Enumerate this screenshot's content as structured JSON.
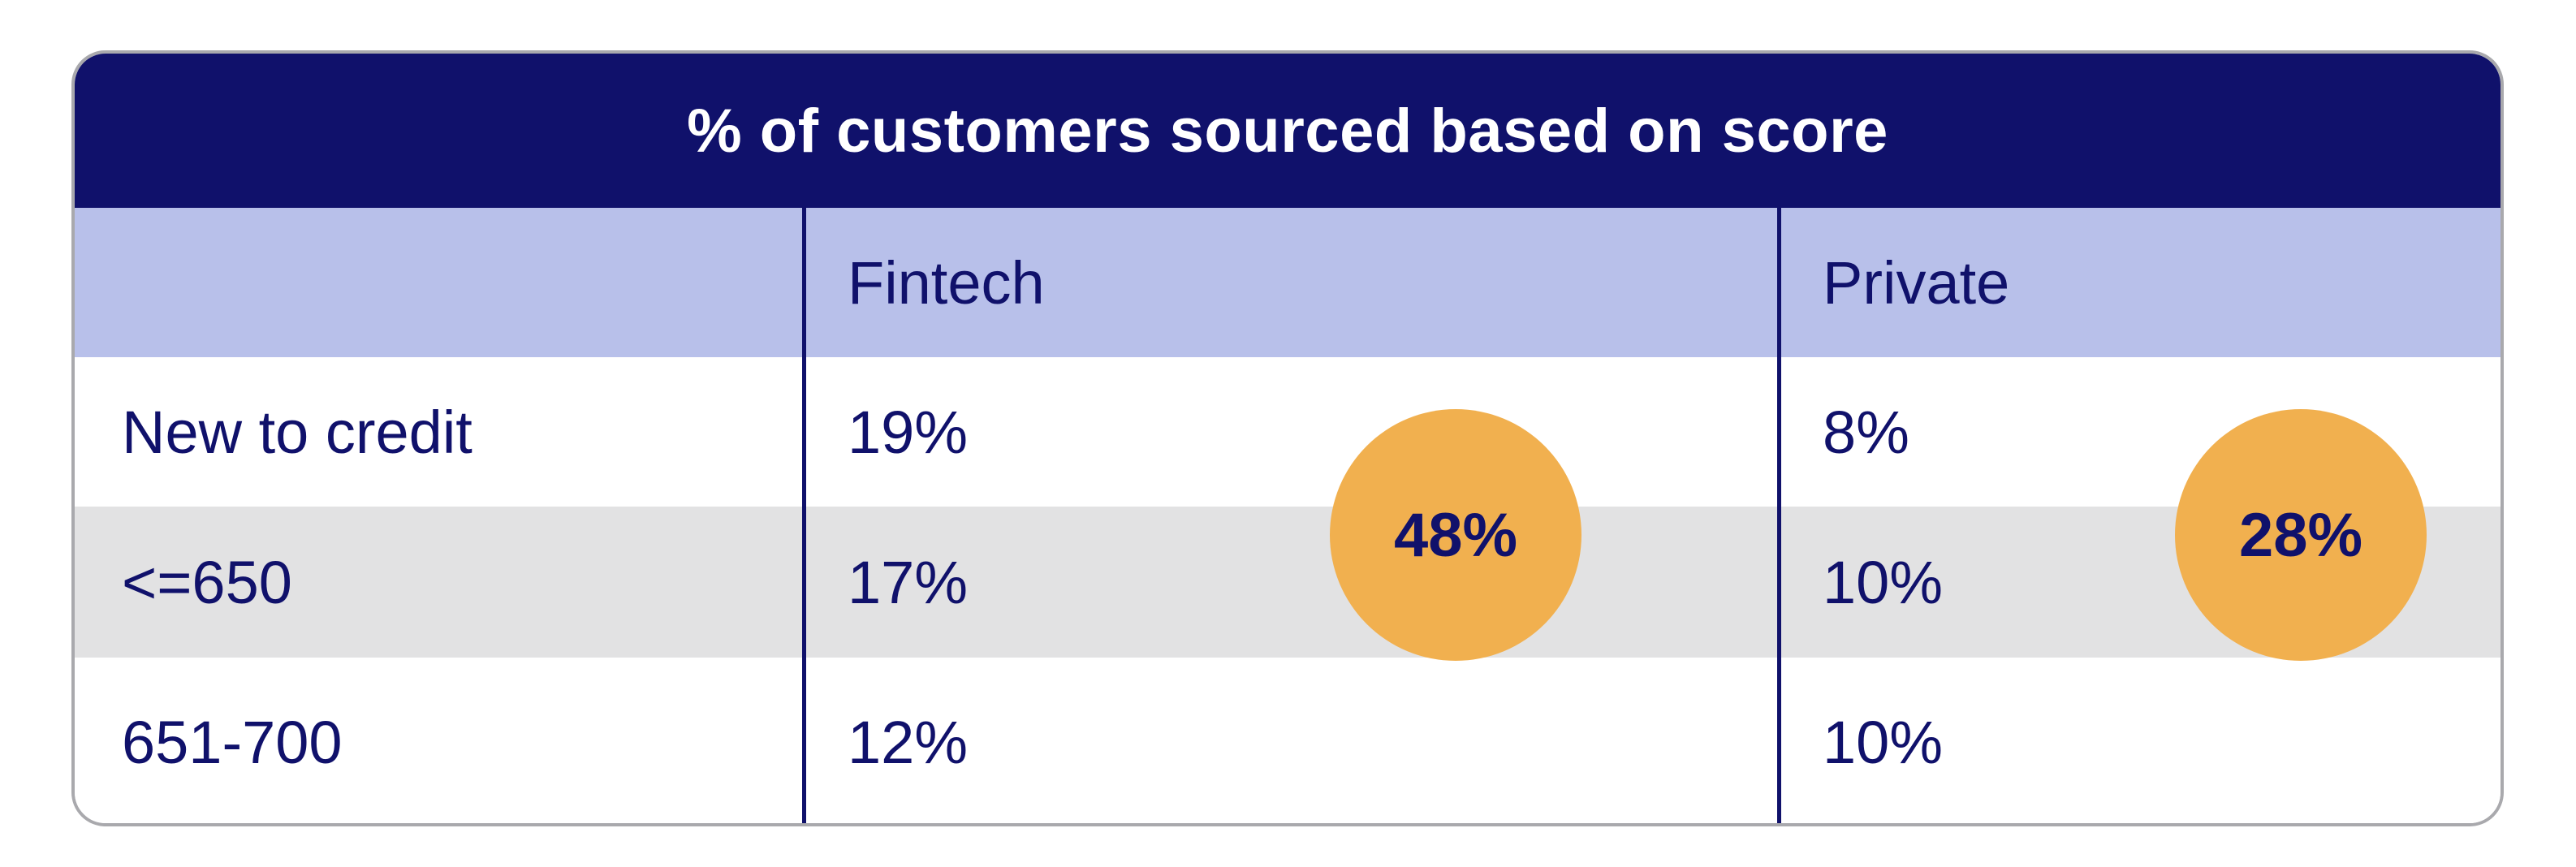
{
  "chart_data": {
    "type": "table",
    "title": "% of customers sourced based on score",
    "columns": [
      "",
      "Fintech",
      "Private"
    ],
    "rows": [
      {
        "label": "New to credit",
        "values": [
          "19%",
          "8%"
        ]
      },
      {
        "label": "<=650",
        "values": [
          "17%",
          "10%"
        ]
      },
      {
        "label": "651-700",
        "values": [
          "12%",
          "10%"
        ]
      }
    ],
    "totals": {
      "Fintech": "48%",
      "Private": "28%"
    }
  },
  "colors": {
    "title_bg": "#10116b",
    "header_bg": "#b8c0ea",
    "stripe_bg": "#e2e2e3",
    "bubble": "#f1b04f",
    "text": "#10116b"
  }
}
